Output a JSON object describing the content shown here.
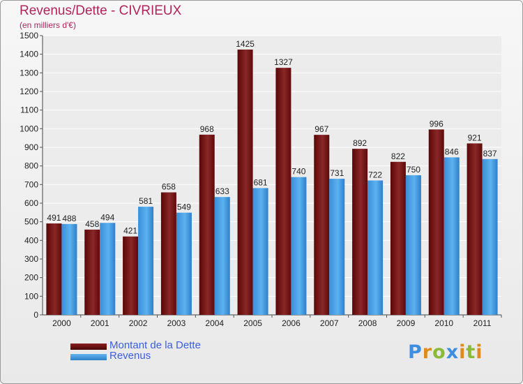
{
  "title": "Revenus/Dette - CIVRIEUX",
  "subtitle": "(en milliers d'€)",
  "logo": {
    "letters": [
      "P",
      "r",
      "o",
      "x",
      "i",
      "t",
      "i"
    ],
    "colors": [
      "#3d8ee0",
      "#e08a1e",
      "#8bb93a",
      "#3d8ee0",
      "#e08a1e",
      "#8bb93a",
      "#e08a1e"
    ]
  },
  "legend": [
    {
      "label": "Montant de la Dette",
      "color": "#6b1010"
    },
    {
      "label": "Revenus",
      "color": "#4da3e6"
    }
  ],
  "chart_data": {
    "type": "bar",
    "title": "Revenus/Dette - CIVRIEUX",
    "ylabel": "(en milliers d'€)",
    "xlabel": "",
    "ylim": [
      0,
      1500
    ],
    "ytick_step": 100,
    "grid": true,
    "categories": [
      "2000",
      "2001",
      "2002",
      "2003",
      "2004",
      "2005",
      "2006",
      "2007",
      "2008",
      "2009",
      "2010",
      "2011"
    ],
    "series": [
      {
        "name": "Montant de la Dette",
        "color": "#7a1a1a",
        "values": [
          491,
          458,
          421,
          658,
          968,
          1425,
          1327,
          967,
          892,
          822,
          996,
          921
        ]
      },
      {
        "name": "Revenus",
        "color": "#4da3e6",
        "values": [
          488,
          494,
          581,
          549,
          633,
          681,
          740,
          731,
          722,
          750,
          846,
          837
        ]
      }
    ]
  }
}
